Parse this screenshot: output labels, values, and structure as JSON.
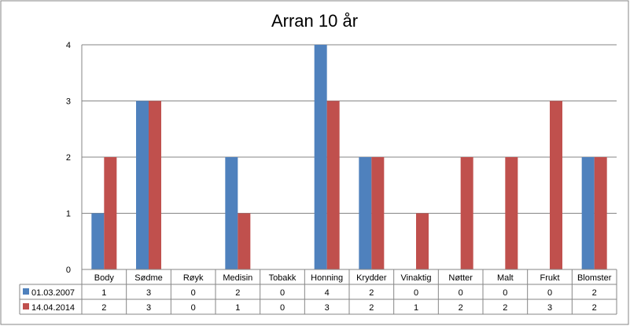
{
  "colors": {
    "series_1": "#4f81bd",
    "series_2": "#c0504d",
    "gridline": "#868686",
    "border": "#868686"
  },
  "chart_data": {
    "type": "bar",
    "title": "Arran 10 år",
    "categories": [
      "Body",
      "Sødme",
      "Røyk",
      "Medisin",
      "Tobakk",
      "Honning",
      "Krydder",
      "Vinaktig",
      "Nøtter",
      "Malt",
      "Frukt",
      "Blomster"
    ],
    "series": [
      {
        "name": "01.03.2007",
        "values": [
          1,
          3,
          0,
          2,
          0,
          4,
          2,
          0,
          0,
          0,
          0,
          2
        ]
      },
      {
        "name": "14.04.2014",
        "values": [
          2,
          3,
          0,
          1,
          0,
          3,
          2,
          1,
          2,
          2,
          3,
          2
        ]
      }
    ],
    "ylim": [
      0,
      4
    ],
    "yticks": [
      0,
      1,
      2,
      3,
      4
    ],
    "xlabel": "",
    "ylabel": "",
    "grid": true,
    "legend": "data-table"
  }
}
